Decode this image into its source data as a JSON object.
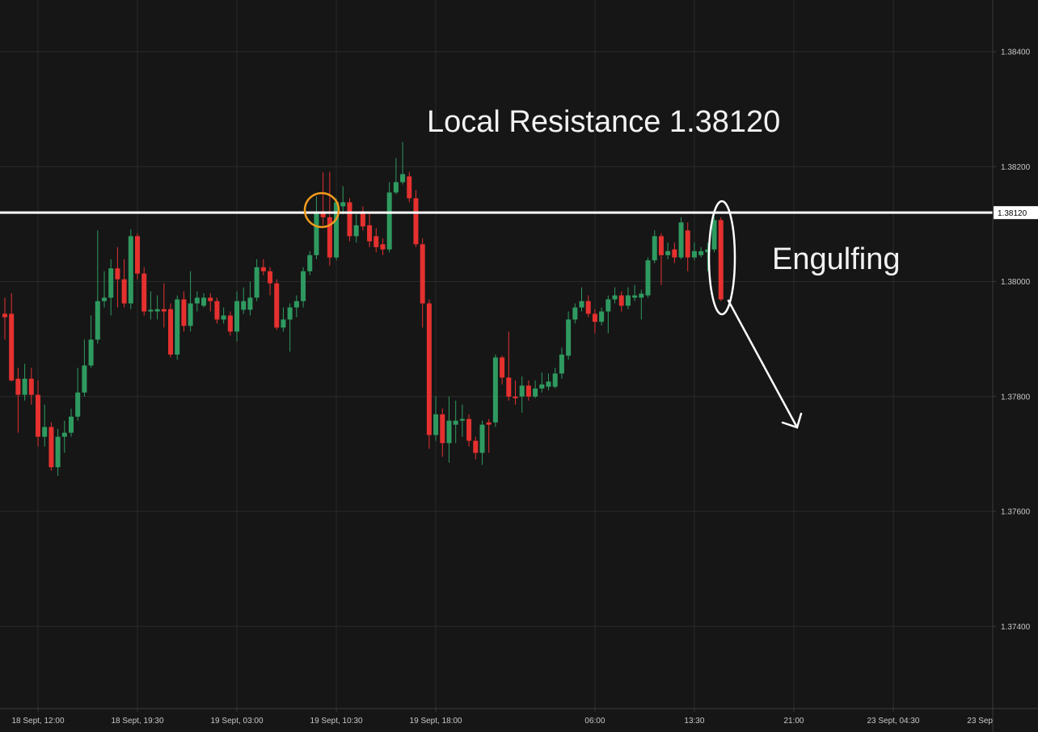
{
  "chart_data": {
    "type": "candlestick",
    "x": [
      -5,
      -4,
      -3,
      -2,
      -1,
      0,
      1,
      2,
      3,
      4,
      5,
      6,
      7,
      8,
      9,
      10,
      11,
      12,
      13,
      14,
      15,
      16,
      17,
      18,
      19,
      20,
      21,
      22,
      23,
      24,
      25,
      26,
      27,
      28,
      29,
      30,
      31,
      32,
      33,
      34,
      35,
      36,
      37,
      38,
      39,
      40,
      41,
      42,
      43,
      44,
      45,
      46,
      47,
      48,
      49,
      50,
      51,
      52,
      53,
      54,
      55,
      56,
      57,
      58,
      59,
      60,
      61,
      62,
      63,
      64,
      65,
      66,
      67,
      68,
      69,
      70,
      71,
      72,
      73,
      74,
      75,
      76,
      77,
      78,
      79,
      80,
      81,
      82,
      83,
      84,
      85,
      86,
      87,
      88,
      89,
      90,
      91,
      92,
      93,
      94,
      95,
      96,
      97,
      98,
      99,
      100,
      101,
      102,
      103
    ],
    "open": [
      1.37944,
      1.37944,
      1.37831,
      1.37803,
      1.37831,
      1.37803,
      1.3773,
      1.37747,
      1.37677,
      1.3773,
      1.37737,
      1.37765,
      1.37807,
      1.37854,
      1.37899,
      1.37966,
      1.37972,
      1.38023,
      1.38004,
      1.37962,
      1.38079,
      1.38014,
      1.37948,
      1.37948,
      1.37952,
      1.37952,
      1.37873,
      1.37969,
      1.37923,
      1.37962,
      1.37958,
      1.37972,
      1.37966,
      1.37934,
      1.37941,
      1.37913,
      1.37951,
      1.37951,
      1.37972,
      1.38025,
      1.38018,
      1.37997,
      1.3792,
      1.37934,
      1.37955,
      1.37966,
      1.38018,
      1.38046,
      1.38121,
      1.38112,
      1.38042,
      1.38131,
      1.38138,
      1.38079,
      1.38121,
      1.38098,
      1.38079,
      1.38065,
      1.38056,
      1.38155,
      1.38173,
      1.38183,
      1.38145,
      1.38065,
      1.37962,
      1.37733,
      1.37769,
      1.37719,
      1.37751,
      1.37758,
      1.37761,
      1.37723,
      1.37702,
      1.37755,
      1.37755,
      1.37868,
      1.37833,
      1.378,
      1.378,
      1.37819,
      1.378,
      1.37814,
      1.37817,
      1.37817,
      1.3784,
      1.37871,
      1.37934,
      1.37955,
      1.37966,
      1.37944,
      1.3793,
      1.37948,
      1.37969,
      1.37976,
      1.37958,
      1.37972,
      1.37972,
      1.37976,
      1.38037,
      1.38079,
      1.38046,
      1.38056,
      1.38042,
      1.38089,
      1.38042,
      1.38046,
      1.38051,
      1.38056,
      1.38107
    ],
    "high": [
      1.37972,
      1.3798,
      1.3785,
      1.37857,
      1.3785,
      1.37828,
      1.37786,
      1.37755,
      1.37744,
      1.37758,
      1.37779,
      1.3785,
      1.37899,
      1.37941,
      1.38089,
      1.38018,
      1.38039,
      1.3806,
      1.38039,
      1.38091,
      1.38084,
      1.38025,
      1.37983,
      1.37976,
      1.37997,
      1.37962,
      1.37976,
      1.37983,
      1.38018,
      1.37983,
      1.3798,
      1.3798,
      1.37972,
      1.37955,
      1.37948,
      1.37983,
      1.3799,
      1.38,
      1.38039,
      1.38039,
      1.38025,
      1.38004,
      1.37955,
      1.37962,
      1.37976,
      1.38025,
      1.38053,
      1.38148,
      1.3819,
      1.38191,
      1.38145,
      1.38166,
      1.38145,
      1.38117,
      1.38131,
      1.38121,
      1.38093,
      1.38075,
      1.38173,
      1.38215,
      1.38243,
      1.38191,
      1.38159,
      1.38075,
      1.37969,
      1.378,
      1.37779,
      1.378,
      1.37793,
      1.37786,
      1.37769,
      1.3773,
      1.37758,
      1.37761,
      1.37873,
      1.37871,
      1.37913,
      1.37828,
      1.37835,
      1.37828,
      1.37828,
      1.37842,
      1.3784,
      1.3785,
      1.37885,
      1.37948,
      1.37962,
      1.3799,
      1.37976,
      1.37952,
      1.37955,
      1.37976,
      1.3799,
      1.37983,
      1.3799,
      1.37994,
      1.37986,
      1.38042,
      1.38089,
      1.38084,
      1.38068,
      1.38068,
      1.38112,
      1.38103,
      1.38068,
      1.3806,
      1.38068,
      1.38112,
      1.38112
    ],
    "low": [
      1.37899,
      1.37826,
      1.37737,
      1.37793,
      1.37786,
      1.37713,
      1.37713,
      1.37671,
      1.37662,
      1.37702,
      1.3773,
      1.37758,
      1.378,
      1.3785,
      1.37892,
      1.37955,
      1.37941,
      1.37955,
      1.37955,
      1.37952,
      1.38004,
      1.37941,
      1.37934,
      1.37934,
      1.3792,
      1.37868,
      1.37864,
      1.37913,
      1.37913,
      1.37948,
      1.37955,
      1.37948,
      1.37927,
      1.37927,
      1.37906,
      1.37896,
      1.37944,
      1.37941,
      1.37966,
      1.38011,
      1.37976,
      1.37916,
      1.37913,
      1.37878,
      1.37938,
      1.37955,
      1.38011,
      1.38039,
      1.38098,
      1.38028,
      1.38037,
      1.38117,
      1.3807,
      1.38068,
      1.38089,
      1.3806,
      1.38051,
      1.38046,
      1.38051,
      1.38152,
      1.38169,
      1.38138,
      1.3806,
      1.3792,
      1.37709,
      1.37723,
      1.37695,
      1.37685,
      1.37719,
      1.3773,
      1.37713,
      1.37691,
      1.37681,
      1.37702,
      1.37747,
      1.37821,
      1.37793,
      1.37786,
      1.37772,
      1.37793,
      1.37797,
      1.37807,
      1.37811,
      1.37814,
      1.37831,
      1.37864,
      1.37927,
      1.37948,
      1.37938,
      1.3791,
      1.37924,
      1.3791,
      1.37962,
      1.37948,
      1.37952,
      1.37966,
      1.37934,
      1.37972,
      1.38032,
      1.37994,
      1.38039,
      1.38032,
      1.38039,
      1.38018,
      1.38037,
      1.38042,
      1.38018,
      1.38051,
      1.37966
    ],
    "close": [
      1.37938,
      1.37828,
      1.37803,
      1.37831,
      1.37803,
      1.3773,
      1.37747,
      1.37677,
      1.3773,
      1.37737,
      1.37765,
      1.37807,
      1.37854,
      1.37899,
      1.37966,
      1.37972,
      1.38023,
      1.38004,
      1.37962,
      1.38079,
      1.38014,
      1.37948,
      1.37951,
      1.37952,
      1.37948,
      1.37873,
      1.37969,
      1.37923,
      1.37962,
      1.37972,
      1.37972,
      1.37966,
      1.37934,
      1.37941,
      1.37913,
      1.37966,
      1.37966,
      1.37972,
      1.38025,
      1.38018,
      1.37997,
      1.3792,
      1.37934,
      1.37955,
      1.37966,
      1.38018,
      1.38046,
      1.38121,
      1.38112,
      1.38042,
      1.38138,
      1.38138,
      1.38079,
      1.38098,
      1.38096,
      1.3807,
      1.3806,
      1.38056,
      1.38155,
      1.38173,
      1.38187,
      1.38145,
      1.38065,
      1.37962,
      1.37733,
      1.37769,
      1.37719,
      1.37758,
      1.37758,
      1.37761,
      1.37723,
      1.37702,
      1.37751,
      1.37751,
      1.37868,
      1.37833,
      1.378,
      1.37797,
      1.37819,
      1.378,
      1.37814,
      1.37821,
      1.37826,
      1.3784,
      1.37873,
      1.37934,
      1.37955,
      1.37966,
      1.37944,
      1.3793,
      1.37948,
      1.37969,
      1.37976,
      1.37958,
      1.37976,
      1.37976,
      1.37979,
      1.38037,
      1.38079,
      1.38046,
      1.38053,
      1.38042,
      1.38103,
      1.38042,
      1.38053,
      1.38053,
      1.38056,
      1.38107,
      1.37969
    ],
    "up_color": "#2f9a60",
    "down_color": "#e5312f",
    "xlim": [
      -5.73,
      144
    ],
    "xticks": [
      {
        "value": 0,
        "label": "18 Sept, 12:00"
      },
      {
        "value": 15,
        "label": "18 Sept, 19:30"
      },
      {
        "value": 30,
        "label": "19 Sept, 03:00"
      },
      {
        "value": 45,
        "label": "19 Sept, 10:30"
      },
      {
        "value": 60,
        "label": "19 Sept, 18:00"
      },
      {
        "value": 84,
        "label": "06:00"
      },
      {
        "value": 99,
        "label": "13:30"
      },
      {
        "value": 114,
        "label": "21:00"
      },
      {
        "value": 129,
        "label": "23 Sept, 04:30"
      },
      {
        "value": 144,
        "label": "23 Sep"
      }
    ],
    "ylim": [
      1.37257,
      1.3849
    ],
    "yticks": [
      {
        "value": 1.374,
        "label": "1.37400"
      },
      {
        "value": 1.376,
        "label": "1.37600"
      },
      {
        "value": 1.378,
        "label": "1.37800"
      },
      {
        "value": 1.38,
        "label": "1.38000"
      },
      {
        "value": 1.382,
        "label": "1.38200"
      },
      {
        "value": 1.384,
        "label": "1.38400"
      }
    ],
    "grid": true,
    "price_line": {
      "value": 1.3812,
      "label": "1.38120"
    },
    "annotations": [
      "Local Resistance 1.38120",
      "Engulfing"
    ]
  }
}
